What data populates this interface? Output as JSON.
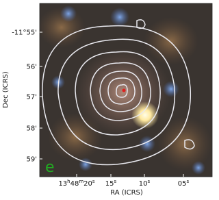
{
  "panel_label": "e",
  "x_axis": {
    "label": "RA (ICRS)",
    "ticks": [
      "13h48m20s",
      "15s",
      "10s",
      "05s"
    ]
  },
  "y_axis": {
    "label": "Dec (ICRS)",
    "ticks": [
      "-11°55'",
      "56'",
      "57'",
      "58'",
      "59'"
    ]
  }
}
